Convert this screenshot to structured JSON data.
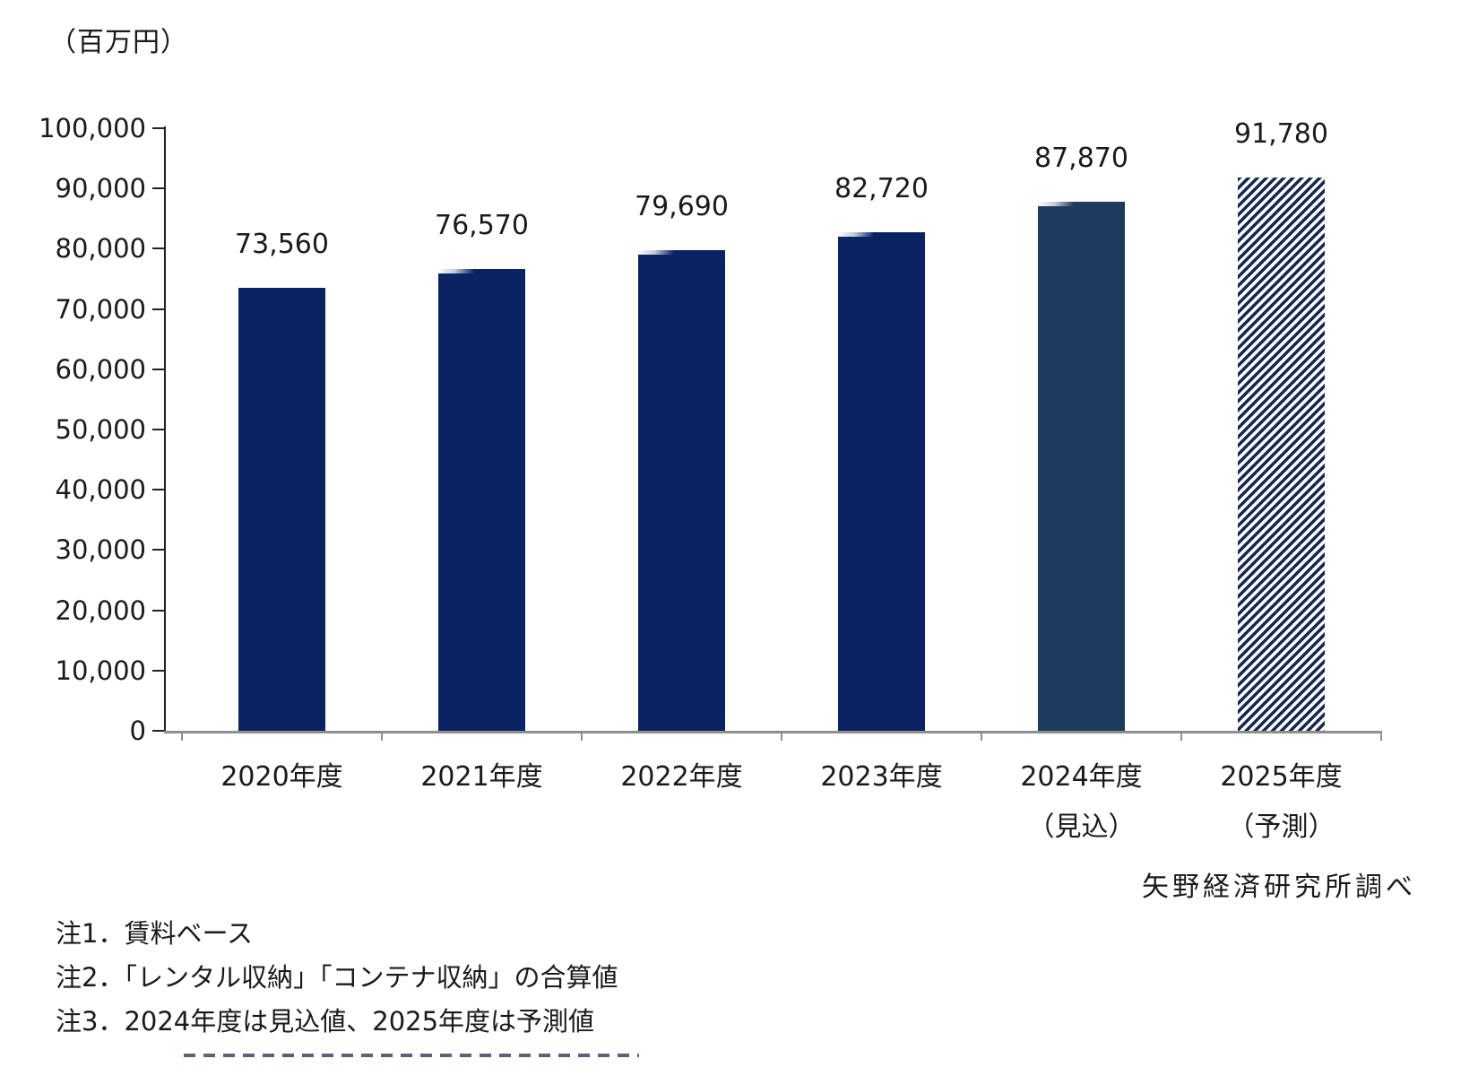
{
  "chart_data": {
    "type": "bar",
    "unit_label": "（百万円）",
    "categories": [
      "2020年度",
      "2021年度",
      "2022年度",
      "2023年度",
      "2024年度",
      "2025年度"
    ],
    "category_sublabels": [
      "",
      "",
      "",
      "",
      "（見込）",
      "（予測）"
    ],
    "values": [
      73560,
      76570,
      79690,
      82720,
      87870,
      91780
    ],
    "value_labels": [
      "73,560",
      "76,570",
      "79,690",
      "82,720",
      "87,870",
      "91,780"
    ],
    "ylim": [
      0,
      100000
    ],
    "ytick_step": 10000,
    "ytick_labels": [
      "0",
      "10,000",
      "20,000",
      "30,000",
      "40,000",
      "50,000",
      "60,000",
      "70,000",
      "80,000",
      "90,000",
      "100,000"
    ],
    "grid": false,
    "legend": "none",
    "bar_styles": [
      "solid",
      "solid",
      "solid",
      "solid",
      "estimate",
      "forecast"
    ],
    "colors": {
      "solid": "#0a2463",
      "estimate": "#1d3a5f",
      "forecast_hatch": "#17294f",
      "axis_y": "#222222",
      "axis_x": "#8e8e8e",
      "text": "#1a1a1a"
    }
  },
  "source": "矢野経済研究所調べ",
  "notes": [
    "注1．賃料ベース",
    "注2．「レンタル収納」「コンテナ収納」の合算値",
    "注3．2024年度は見込値、2025年度は予測値"
  ]
}
